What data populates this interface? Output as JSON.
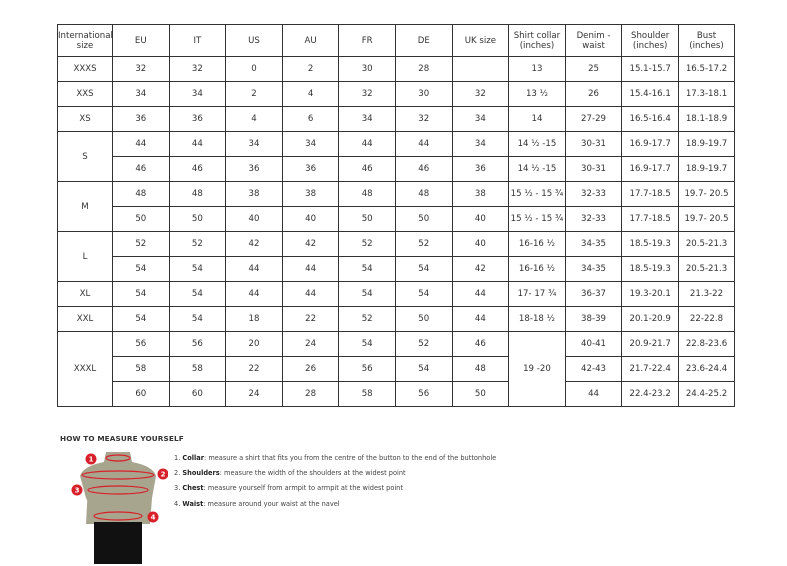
{
  "headers": [
    "International size",
    "EU",
    "IT",
    "US",
    "AU",
    "FR",
    "DE",
    "UK size",
    "Shirt collar (inches)",
    "Denim - waist",
    "Shoulder (inches)",
    "Bust (inches)"
  ],
  "groups": [
    {
      "size": "XXXS",
      "rows": [
        [
          "32",
          "32",
          "0",
          "2",
          "30",
          "28",
          "",
          "13",
          "25",
          "15.1-15.7",
          "16.5-17.2"
        ]
      ]
    },
    {
      "size": "XXS",
      "rows": [
        [
          "34",
          "34",
          "2",
          "4",
          "32",
          "30",
          "32",
          "13 ½",
          "26",
          "15.4-16.1",
          "17.3-18.1"
        ]
      ]
    },
    {
      "size": "XS",
      "rows": [
        [
          "36",
          "36",
          "4",
          "6",
          "34",
          "32",
          "34",
          "14",
          "27-29",
          "16.5-16.4",
          "18.1-18.9"
        ]
      ]
    },
    {
      "size": "S",
      "rows": [
        [
          "44",
          "44",
          "34",
          "34",
          "44",
          "44",
          "34",
          "14 ½ -15",
          "30-31",
          "16.9-17.7",
          "18.9-19.7"
        ],
        [
          "46",
          "46",
          "36",
          "36",
          "46",
          "46",
          "36",
          "14 ½ -15",
          "30-31",
          "16.9-17.7",
          "18.9-19.7"
        ]
      ]
    },
    {
      "size": "M",
      "rows": [
        [
          "48",
          "48",
          "38",
          "38",
          "48",
          "48",
          "38",
          "15 ½ - 15 ¾",
          "32-33",
          "17.7-18.5",
          "19.7- 20.5"
        ],
        [
          "50",
          "50",
          "40",
          "40",
          "50",
          "50",
          "40",
          "15 ½ - 15 ¾",
          "32-33",
          "17.7-18.5",
          "19.7- 20.5"
        ]
      ]
    },
    {
      "size": "L",
      "rows": [
        [
          "52",
          "52",
          "42",
          "42",
          "52",
          "52",
          "40",
          "16-16 ½",
          "34-35",
          "18.5-19.3",
          "20.5-21.3"
        ],
        [
          "54",
          "54",
          "44",
          "44",
          "54",
          "54",
          "42",
          "16-16 ½",
          "34-35",
          "18.5-19.3",
          "20.5-21.3"
        ]
      ]
    },
    {
      "size": "XL",
      "rows": [
        [
          "54",
          "54",
          "44",
          "44",
          "54",
          "54",
          "44",
          "17- 17 ¾",
          "36-37",
          "19.3-20.1",
          "21.3-22"
        ]
      ]
    },
    {
      "size": "XXL",
      "rows": [
        [
          "54",
          "54",
          "18",
          "22",
          "52",
          "50",
          "44",
          "18-18 ½",
          "38-39",
          "20.1-20.9",
          "22-22.8"
        ]
      ]
    },
    {
      "size": "XXXL",
      "collar_merged": "19 -20",
      "rows": [
        [
          "56",
          "56",
          "20",
          "24",
          "54",
          "52",
          "46",
          "40-41",
          "20.9-21.7",
          "22.8-23.6"
        ],
        [
          "58",
          "58",
          "22",
          "26",
          "56",
          "54",
          "48",
          "42-43",
          "21.7-22.4",
          "23.6-24.4"
        ],
        [
          "60",
          "60",
          "24",
          "28",
          "58",
          "56",
          "50",
          "44",
          "22.4-23.2",
          "24.4-25.2"
        ]
      ]
    }
  ],
  "howto": {
    "title": "HOW TO MEASURE YOURSELF",
    "figure_markers": [
      "1",
      "2",
      "3",
      "4"
    ],
    "steps": [
      {
        "num": "1.",
        "term": "Collar",
        "text": ": measure a shirt that fits you from the centre of the button to the end of the buttonhole"
      },
      {
        "num": "2.",
        "term": "Shoulders",
        "text": ": measure the width of the shoulders at the widest point"
      },
      {
        "num": "3.",
        "term": "Chest",
        "text": ": measure yourself from armpit to armpit at the widest point"
      },
      {
        "num": "4.",
        "term": "Waist",
        "text": ": measure around your waist at the navel"
      }
    ],
    "colors": {
      "marker": "#d8202a",
      "torso": "#a8a58f",
      "pants": "#111111"
    }
  }
}
